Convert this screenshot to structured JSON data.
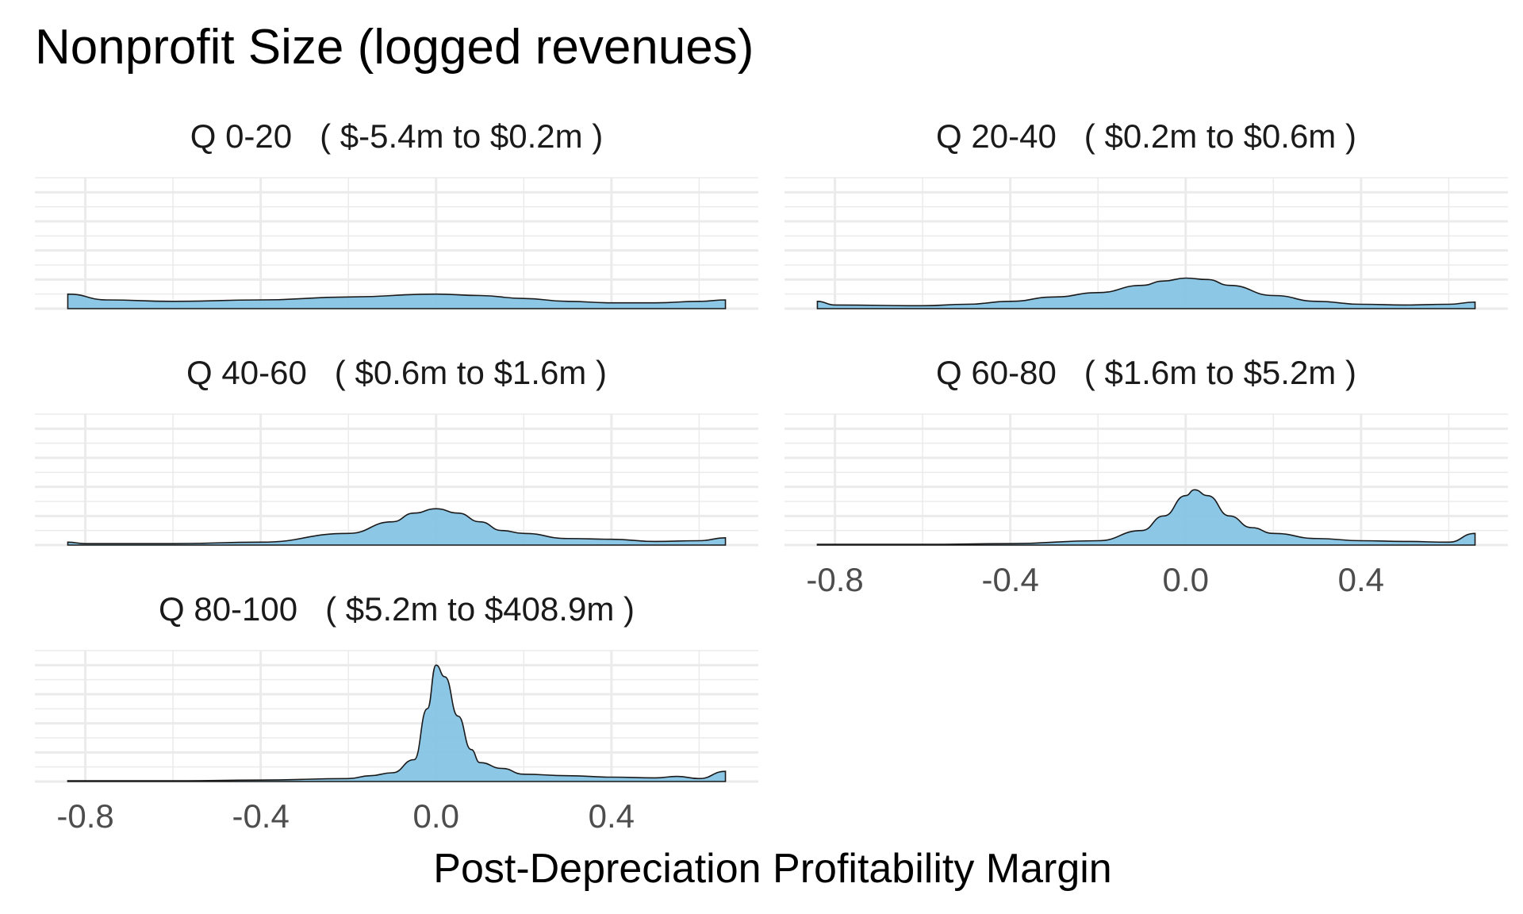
{
  "chart_data": {
    "type": "area",
    "title": "Nonprofit Size (logged revenues)",
    "xlabel": "Post-Depreciation Profitability Margin",
    "ylabel": "",
    "xlim": [
      -0.84,
      0.66
    ],
    "x_ticks": [
      -0.8,
      -0.4,
      0.0,
      0.4
    ],
    "x_tick_labels": [
      "-0.8",
      "-0.4",
      "0.0",
      "0.4"
    ],
    "ylim": [
      0,
      9
    ],
    "fill_color": "#87c4e5",
    "grid": true,
    "facets": [
      {
        "label": "Q 0-20   ( $-5.4m to $0.2m )",
        "x": [
          -0.84,
          -0.75,
          -0.6,
          -0.4,
          -0.2,
          0.0,
          0.1,
          0.2,
          0.3,
          0.4,
          0.5,
          0.6,
          0.66
        ],
        "y": [
          1.0,
          0.6,
          0.5,
          0.6,
          0.8,
          1.0,
          0.9,
          0.7,
          0.5,
          0.4,
          0.4,
          0.5,
          0.6
        ]
      },
      {
        "label": "Q 20-40   ( $0.2m to $0.6m )",
        "x": [
          -0.84,
          -0.8,
          -0.6,
          -0.5,
          -0.4,
          -0.3,
          -0.2,
          -0.1,
          -0.05,
          0.0,
          0.05,
          0.1,
          0.2,
          0.3,
          0.4,
          0.5,
          0.6,
          0.66
        ],
        "y": [
          0.5,
          0.25,
          0.2,
          0.3,
          0.5,
          0.8,
          1.1,
          1.6,
          1.9,
          2.1,
          2.0,
          1.6,
          0.9,
          0.5,
          0.3,
          0.25,
          0.3,
          0.45
        ]
      },
      {
        "label": "Q 40-60   ( $0.6m to $1.6m )",
        "x": [
          -0.84,
          -0.8,
          -0.6,
          -0.4,
          -0.2,
          -0.1,
          -0.05,
          0.0,
          0.05,
          0.1,
          0.15,
          0.2,
          0.3,
          0.4,
          0.5,
          0.6,
          0.66
        ],
        "y": [
          0.2,
          0.1,
          0.1,
          0.2,
          0.8,
          1.6,
          2.2,
          2.5,
          2.2,
          1.6,
          1.0,
          0.8,
          0.45,
          0.4,
          0.25,
          0.3,
          0.5
        ]
      },
      {
        "label": "Q 60-80   ( $1.6m to $5.2m )",
        "x": [
          -0.84,
          -0.6,
          -0.4,
          -0.2,
          -0.1,
          -0.05,
          0.0,
          0.02,
          0.05,
          0.1,
          0.15,
          0.2,
          0.3,
          0.4,
          0.5,
          0.6,
          0.66
        ],
        "y": [
          0.05,
          0.05,
          0.1,
          0.3,
          1.0,
          2.0,
          3.4,
          3.8,
          3.4,
          2.0,
          1.2,
          0.8,
          0.45,
          0.3,
          0.25,
          0.2,
          0.8
        ]
      },
      {
        "label": "Q 80-100   ( $5.2m to $408.9m )",
        "x": [
          -0.84,
          -0.6,
          -0.4,
          -0.2,
          -0.15,
          -0.1,
          -0.05,
          -0.02,
          0.0,
          0.02,
          0.05,
          0.08,
          0.1,
          0.15,
          0.2,
          0.3,
          0.4,
          0.5,
          0.55,
          0.6,
          0.66
        ],
        "y": [
          0.05,
          0.05,
          0.1,
          0.2,
          0.4,
          0.6,
          1.5,
          5.0,
          8.0,
          7.2,
          4.5,
          2.2,
          1.3,
          0.9,
          0.5,
          0.4,
          0.3,
          0.25,
          0.35,
          0.2,
          0.7
        ]
      }
    ]
  }
}
